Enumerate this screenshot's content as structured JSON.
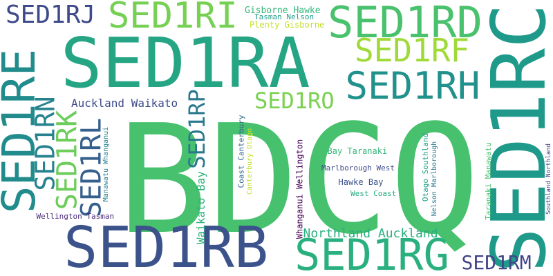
{
  "words": [
    {
      "id": "bdcq",
      "text": "BDCQ",
      "color": "#48c16e",
      "orientation": "horizontal"
    },
    {
      "id": "sed1ra",
      "text": "SED1RA",
      "color": "#25a584",
      "orientation": "horizontal"
    },
    {
      "id": "sed1rc",
      "text": "SED1RC",
      "color": "#1f9a8a",
      "orientation": "vertical"
    },
    {
      "id": "sed1rb",
      "text": "SED1RB",
      "color": "#3b528b",
      "orientation": "horizontal"
    },
    {
      "id": "sed1rg",
      "text": "SED1RG",
      "color": "#2ab07f",
      "orientation": "horizontal"
    },
    {
      "id": "sed1rd",
      "text": "SED1RD",
      "color": "#4ac16d",
      "orientation": "horizontal"
    },
    {
      "id": "sed1re",
      "text": "SED1RE",
      "color": "#228c8d",
      "orientation": "vertical"
    },
    {
      "id": "sed1rh",
      "text": "SED1RH",
      "color": "#21918c",
      "orientation": "horizontal"
    },
    {
      "id": "sed1rf",
      "text": "SED1RF",
      "color": "#a0da39",
      "orientation": "horizontal"
    },
    {
      "id": "sed1ri",
      "text": "SED1RI",
      "color": "#75d054",
      "orientation": "horizontal"
    },
    {
      "id": "sed1rj",
      "text": "SED1RJ",
      "color": "#3e4a89",
      "orientation": "horizontal"
    },
    {
      "id": "sed1rn",
      "text": "SED1RN",
      "color": "#26828e",
      "orientation": "vertical"
    },
    {
      "id": "sed1rk",
      "text": "SED1RK",
      "color": "#6ccd5a",
      "orientation": "vertical"
    },
    {
      "id": "sed1rl",
      "text": "SED1RL",
      "color": "#355f8d",
      "orientation": "vertical"
    },
    {
      "id": "sed1rp",
      "text": "SED1RP",
      "color": "#2a788e",
      "orientation": "vertical"
    },
    {
      "id": "sed1ro",
      "text": "SED1RO",
      "color": "#7ad151",
      "orientation": "horizontal"
    },
    {
      "id": "sed1rm",
      "text": "SED1RM",
      "color": "#414487",
      "orientation": "horizontal"
    },
    {
      "id": "auckland-waikato",
      "text": "Auckland Waikato",
      "color": "#3e4a89",
      "orientation": "horizontal"
    },
    {
      "id": "northland-auckland",
      "text": "Northland Auckland",
      "color": "#2ab07f",
      "orientation": "horizontal"
    },
    {
      "id": "waikato-bay",
      "text": "Waikato Bay",
      "color": "#2eb37c",
      "orientation": "vertical"
    },
    {
      "id": "gisborne-hawke",
      "text": "Gisborne Hawke",
      "color": "#35b779",
      "orientation": "horizontal"
    },
    {
      "id": "tasman-nelson",
      "text": "Tasman Nelson",
      "color": "#1f9e89",
      "orientation": "horizontal"
    },
    {
      "id": "plenty-gisborne",
      "text": "Plenty Gisborne",
      "color": "#c2df23",
      "orientation": "horizontal"
    },
    {
      "id": "manawatu-whanganui",
      "text": "Manawatu Whanganui",
      "color": "#26818e",
      "orientation": "vertical"
    },
    {
      "id": "wellington-tasman",
      "text": "Wellington Tasman",
      "color": "#482878",
      "orientation": "horizontal"
    },
    {
      "id": "coast-canterbury",
      "text": "Coast Canterbury",
      "color": "#31688e",
      "orientation": "vertical"
    },
    {
      "id": "canterbury-otago",
      "text": "Canterbury Otago",
      "color": "#bddf26",
      "orientation": "vertical"
    },
    {
      "id": "whanganui-wellington",
      "text": "Whanganui Wellington",
      "color": "#440154",
      "orientation": "vertical"
    },
    {
      "id": "bay-taranaki",
      "text": "Bay Taranaki",
      "color": "#35b779",
      "orientation": "horizontal"
    },
    {
      "id": "marlborough-west",
      "text": "Marlborough West",
      "color": "#3e4a89",
      "orientation": "horizontal"
    },
    {
      "id": "hawke-bay",
      "text": "Hawke Bay",
      "color": "#3b528b",
      "orientation": "horizontal"
    },
    {
      "id": "west-coast",
      "text": "West Coast",
      "color": "#25ab82",
      "orientation": "horizontal"
    },
    {
      "id": "otago-southland",
      "text": "Otago Southland",
      "color": "#1fa187",
      "orientation": "vertical"
    },
    {
      "id": "nelson-marlborough",
      "text": "Nelson Marlborough",
      "color": "#2a788e",
      "orientation": "vertical"
    },
    {
      "id": "taranaki-manawatu",
      "text": "Taranaki Manawatu",
      "color": "#4ac16d",
      "orientation": "vertical"
    },
    {
      "id": "southland-northland",
      "text": "Southland Northland",
      "color": "#443983",
      "orientation": "vertical"
    }
  ]
}
